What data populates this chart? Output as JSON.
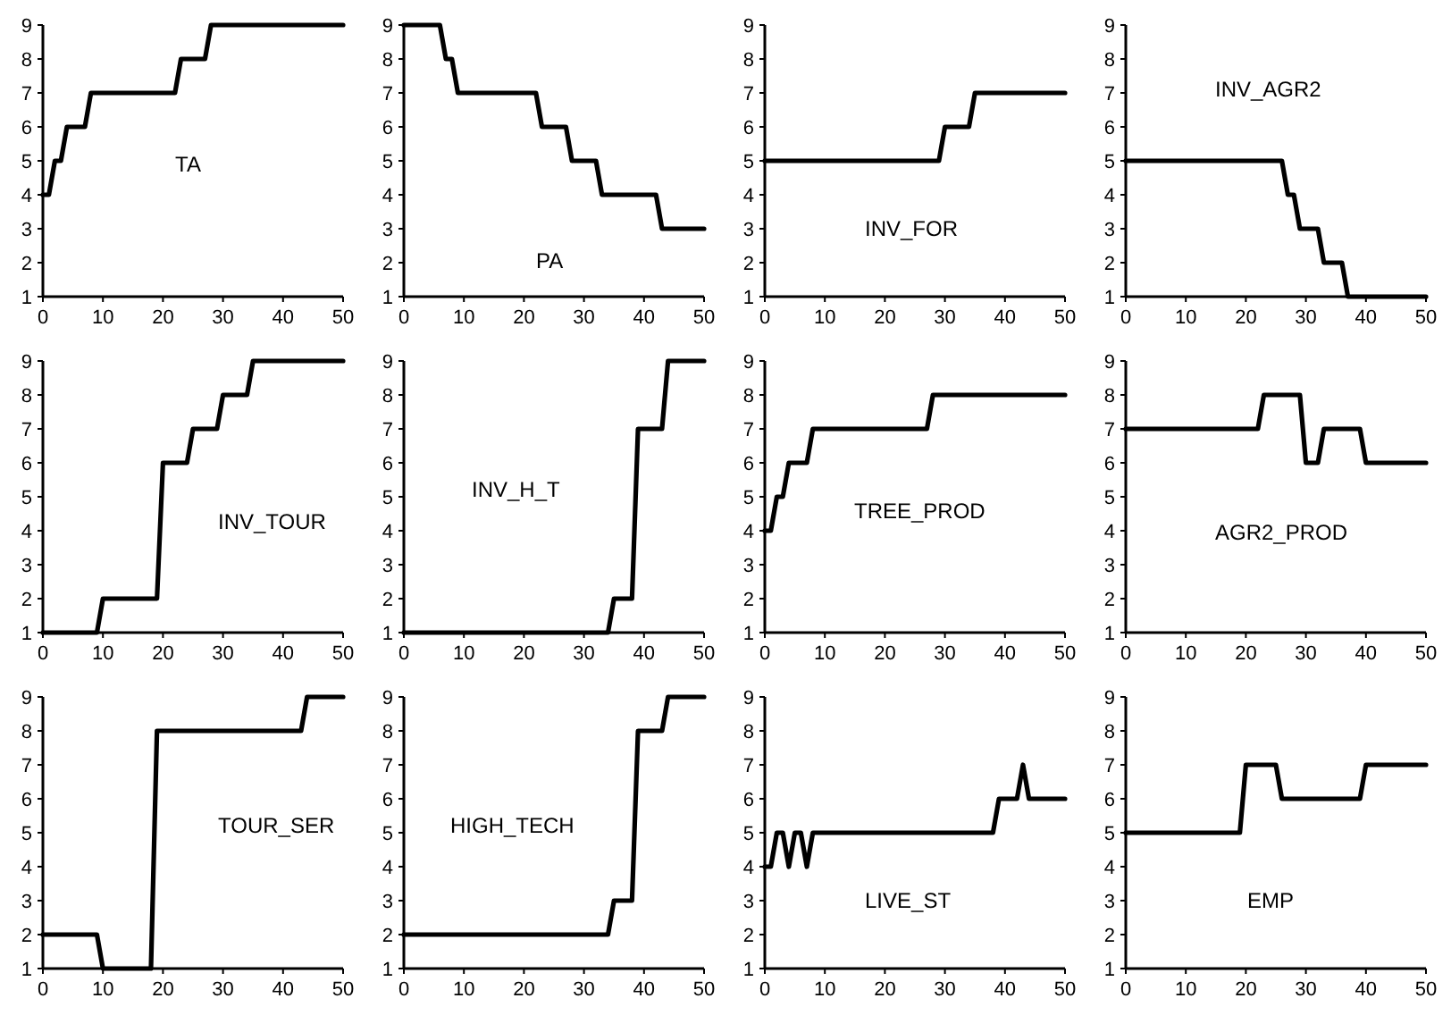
{
  "chart_data": [
    {
      "type": "line",
      "title": "TA",
      "x": [
        0,
        1,
        2,
        3,
        4,
        7,
        8,
        22,
        23,
        27,
        28,
        50
      ],
      "series": [
        {
          "color": "#000000",
          "values": [
            4,
            4,
            5,
            5,
            6,
            6,
            7,
            7,
            8,
            8,
            9,
            9
          ]
        }
      ],
      "xlim": [
        0,
        50
      ],
      "ylim": [
        1,
        9
      ],
      "xticks": [
        0,
        10,
        20,
        30,
        40,
        50
      ],
      "yticks": [
        1,
        2,
        3,
        4,
        5,
        6,
        7,
        8,
        9
      ],
      "grid": false
    },
    {
      "type": "line",
      "title": "PA",
      "x": [
        0,
        6,
        7,
        8,
        9,
        22,
        23,
        27,
        28,
        32,
        33,
        42,
        43,
        50
      ],
      "series": [
        {
          "color": "#000000",
          "values": [
            9,
            9,
            8,
            8,
            7,
            7,
            6,
            6,
            5,
            5,
            4,
            4,
            3,
            3
          ]
        }
      ],
      "xlim": [
        0,
        50
      ],
      "ylim": [
        1,
        9
      ],
      "xticks": [
        0,
        10,
        20,
        30,
        40,
        50
      ],
      "yticks": [
        1,
        2,
        3,
        4,
        5,
        6,
        7,
        8,
        9
      ],
      "grid": false
    },
    {
      "type": "line",
      "title": "INV_FOR",
      "x": [
        0,
        29,
        30,
        34,
        35,
        50
      ],
      "series": [
        {
          "color": "#000000",
          "values": [
            5,
            5,
            6,
            6,
            7,
            7
          ]
        }
      ],
      "xlim": [
        0,
        50
      ],
      "ylim": [
        1,
        9
      ],
      "xticks": [
        0,
        10,
        20,
        30,
        40,
        50
      ],
      "yticks": [
        1,
        2,
        3,
        4,
        5,
        6,
        7,
        8,
        9
      ],
      "grid": false
    },
    {
      "type": "line",
      "title": "INV_AGR2",
      "x": [
        0,
        26,
        27,
        28,
        29,
        32,
        33,
        36,
        37,
        50
      ],
      "series": [
        {
          "color": "#000000",
          "values": [
            5,
            5,
            4,
            4,
            3,
            3,
            2,
            2,
            1,
            1
          ]
        }
      ],
      "xlim": [
        0,
        50
      ],
      "ylim": [
        1,
        9
      ],
      "xticks": [
        0,
        10,
        20,
        30,
        40,
        50
      ],
      "yticks": [
        1,
        2,
        3,
        4,
        5,
        6,
        7,
        8,
        9
      ],
      "grid": false
    },
    {
      "type": "line",
      "title": "INV_TOUR",
      "x": [
        0,
        9,
        10,
        19,
        20,
        24,
        25,
        29,
        30,
        34,
        35,
        50
      ],
      "series": [
        {
          "color": "#000000",
          "values": [
            1,
            1,
            2,
            2,
            6,
            6,
            7,
            7,
            8,
            8,
            9,
            9
          ]
        }
      ],
      "xlim": [
        0,
        50
      ],
      "ylim": [
        1,
        9
      ],
      "xticks": [
        0,
        10,
        20,
        30,
        40,
        50
      ],
      "yticks": [
        1,
        2,
        3,
        4,
        5,
        6,
        7,
        8,
        9
      ],
      "grid": false
    },
    {
      "type": "line",
      "title": "INV_H_T",
      "x": [
        0,
        34,
        35,
        38,
        39,
        43,
        44,
        50
      ],
      "series": [
        {
          "color": "#000000",
          "values": [
            1,
            1,
            2,
            2,
            7,
            7,
            9,
            9
          ]
        }
      ],
      "xlim": [
        0,
        50
      ],
      "ylim": [
        1,
        9
      ],
      "xticks": [
        0,
        10,
        20,
        30,
        40,
        50
      ],
      "yticks": [
        1,
        2,
        3,
        4,
        5,
        6,
        7,
        8,
        9
      ],
      "grid": false
    },
    {
      "type": "line",
      "title": "TREE_PROD",
      "x": [
        0,
        1,
        2,
        3,
        4,
        7,
        8,
        27,
        28,
        50
      ],
      "series": [
        {
          "color": "#000000",
          "values": [
            4,
            4,
            5,
            5,
            6,
            6,
            7,
            7,
            8,
            8
          ]
        }
      ],
      "xlim": [
        0,
        50
      ],
      "ylim": [
        1,
        9
      ],
      "xticks": [
        0,
        10,
        20,
        30,
        40,
        50
      ],
      "yticks": [
        1,
        2,
        3,
        4,
        5,
        6,
        7,
        8,
        9
      ],
      "grid": false
    },
    {
      "type": "line",
      "title": "AGR2_PROD",
      "x": [
        0,
        22,
        23,
        29,
        30,
        32,
        33,
        39,
        40,
        50
      ],
      "series": [
        {
          "color": "#000000",
          "values": [
            7,
            7,
            8,
            8,
            6,
            6,
            7,
            7,
            6,
            6
          ]
        }
      ],
      "xlim": [
        0,
        50
      ],
      "ylim": [
        1,
        9
      ],
      "xticks": [
        0,
        10,
        20,
        30,
        40,
        50
      ],
      "yticks": [
        1,
        2,
        3,
        4,
        5,
        6,
        7,
        8,
        9
      ],
      "grid": false
    },
    {
      "type": "line",
      "title": "TOUR_SER",
      "x": [
        0,
        9,
        10,
        18,
        19,
        43,
        44,
        50
      ],
      "series": [
        {
          "color": "#000000",
          "values": [
            2,
            2,
            1,
            1,
            8,
            8,
            9,
            9
          ]
        }
      ],
      "xlim": [
        0,
        50
      ],
      "ylim": [
        1,
        9
      ],
      "xticks": [
        0,
        10,
        20,
        30,
        40,
        50
      ],
      "yticks": [
        1,
        2,
        3,
        4,
        5,
        6,
        7,
        8,
        9
      ],
      "grid": false
    },
    {
      "type": "line",
      "title": "HIGH_TECH",
      "x": [
        0,
        34,
        35,
        38,
        39,
        43,
        44,
        50
      ],
      "series": [
        {
          "color": "#000000",
          "values": [
            2,
            2,
            3,
            3,
            8,
            8,
            9,
            9
          ]
        }
      ],
      "xlim": [
        0,
        50
      ],
      "ylim": [
        1,
        9
      ],
      "xticks": [
        0,
        10,
        20,
        30,
        40,
        50
      ],
      "yticks": [
        1,
        2,
        3,
        4,
        5,
        6,
        7,
        8,
        9
      ],
      "grid": false
    },
    {
      "type": "line",
      "title": "LIVE_ST",
      "x": [
        0,
        1,
        2,
        3,
        4,
        5,
        6,
        7,
        8,
        38,
        39,
        42,
        43,
        44,
        50
      ],
      "series": [
        {
          "color": "#000000",
          "values": [
            4,
            4,
            5,
            5,
            4,
            5,
            5,
            4,
            5,
            5,
            6,
            6,
            7,
            6,
            6
          ]
        }
      ],
      "xlim": [
        0,
        50
      ],
      "ylim": [
        1,
        9
      ],
      "xticks": [
        0,
        10,
        20,
        30,
        40,
        50
      ],
      "yticks": [
        1,
        2,
        3,
        4,
        5,
        6,
        7,
        8,
        9
      ],
      "grid": false
    },
    {
      "type": "line",
      "title": "EMP",
      "x": [
        0,
        19,
        20,
        25,
        26,
        39,
        40,
        50
      ],
      "series": [
        {
          "color": "#000000",
          "values": [
            5,
            5,
            7,
            7,
            6,
            6,
            7,
            7
          ]
        }
      ],
      "xlim": [
        0,
        50
      ],
      "ylim": [
        1,
        9
      ],
      "xticks": [
        0,
        10,
        20,
        30,
        40,
        50
      ],
      "yticks": [
        1,
        2,
        3,
        4,
        5,
        6,
        7,
        8,
        9
      ],
      "grid": false
    }
  ]
}
